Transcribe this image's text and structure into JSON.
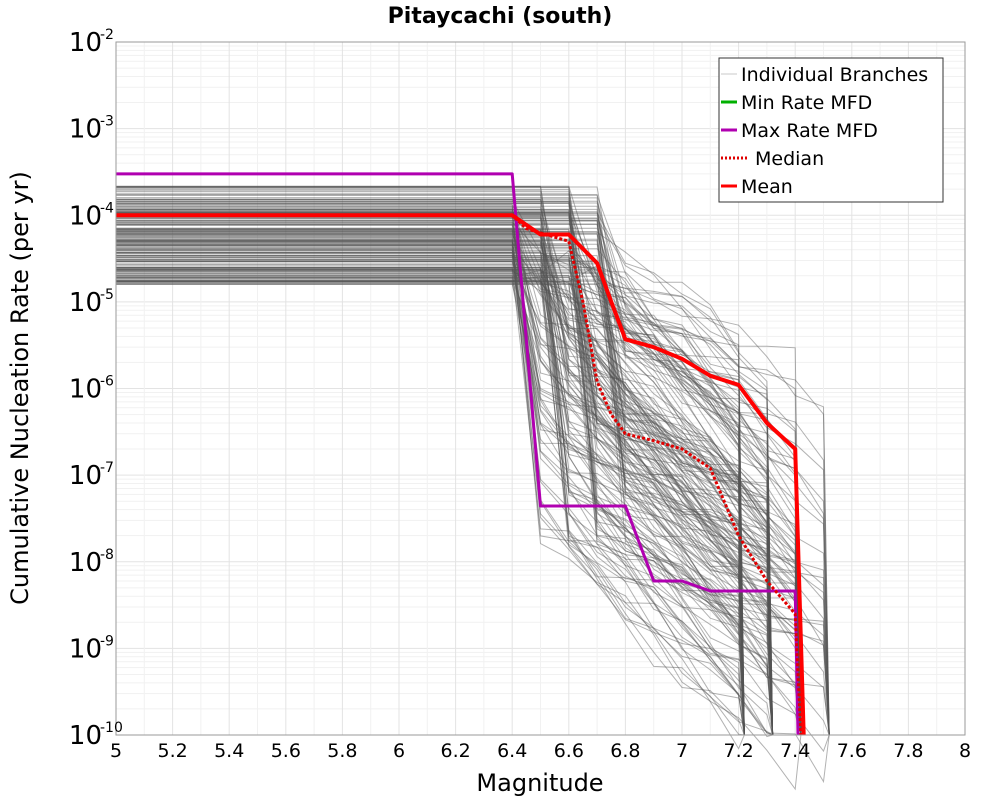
{
  "chart_data": {
    "type": "line",
    "title": "Pitaycachi (south)",
    "xlabel": "Magnitude",
    "ylabel": "Cumulative Nucleation Rate (per yr)",
    "xlim": [
      5,
      8
    ],
    "ylim": [
      1e-10,
      0.01
    ],
    "yscale": "log",
    "grid": true,
    "legend_position": "top-right",
    "x_ticks": [
      "5",
      "5.2",
      "5.4",
      "5.6",
      "5.8",
      "6",
      "6.2",
      "6.4",
      "6.6",
      "6.8",
      "7",
      "7.2",
      "7.4",
      "7.6",
      "7.8",
      "8"
    ],
    "y_ticks": [
      {
        "base": "10",
        "exp": "-2"
      },
      {
        "base": "10",
        "exp": "-3"
      },
      {
        "base": "10",
        "exp": "-4"
      },
      {
        "base": "10",
        "exp": "-5"
      },
      {
        "base": "10",
        "exp": "-6"
      },
      {
        "base": "10",
        "exp": "-7"
      },
      {
        "base": "10",
        "exp": "-8"
      },
      {
        "base": "10",
        "exp": "-9"
      },
      {
        "base": "10",
        "exp": "-10"
      }
    ],
    "legend": [
      {
        "label": "Individual Branches",
        "color": "#c8c8c8",
        "style": "solid"
      },
      {
        "label": "Min Rate MFD",
        "color": "#00b000",
        "style": "solid"
      },
      {
        "label": "Max Rate MFD",
        "color": "#b000b0",
        "style": "solid"
      },
      {
        "label": "Median",
        "color": "#e00000",
        "style": "dotted"
      },
      {
        "label": "Mean",
        "color": "#ff0000",
        "style": "solid"
      }
    ],
    "series": [
      {
        "name": "Max Rate MFD",
        "color": "#b000b0",
        "width": 3,
        "dash": "",
        "x": [
          5.0,
          6.4,
          6.5,
          6.8,
          6.9,
          7.0,
          7.1,
          7.4,
          7.41
        ],
        "y": [
          0.0003,
          0.0003,
          4.4e-08,
          4.4e-08,
          6e-09,
          6e-09,
          4.6e-09,
          4.6e-09,
          1e-10
        ]
      },
      {
        "name": "Median",
        "color": "#e00000",
        "width": 3,
        "dash": "3,2",
        "x": [
          5.0,
          6.4,
          6.45,
          6.6,
          6.65,
          6.7,
          6.75,
          6.8,
          6.9,
          7.0,
          7.1,
          7.2,
          7.3,
          7.4,
          7.42
        ],
        "y": [
          0.0001,
          0.0001,
          7e-05,
          5e-05,
          1e-05,
          1.2e-06,
          5e-07,
          3e-07,
          2.5e-07,
          2e-07,
          1.2e-07,
          2e-08,
          6e-09,
          2.5e-09,
          1e-10
        ]
      },
      {
        "name": "Mean",
        "color": "#ff0000",
        "width": 4,
        "dash": "",
        "x": [
          5.0,
          6.4,
          6.5,
          6.6,
          6.7,
          6.75,
          6.8,
          6.9,
          7.0,
          7.1,
          7.2,
          7.3,
          7.4,
          7.43
        ],
        "y": [
          0.0001,
          0.0001,
          6e-05,
          6e-05,
          2.8e-05,
          1e-05,
          3.7e-06,
          3e-06,
          2.2e-06,
          1.4e-06,
          1.1e-06,
          4e-07,
          2e-07,
          1e-10
        ]
      }
    ]
  }
}
